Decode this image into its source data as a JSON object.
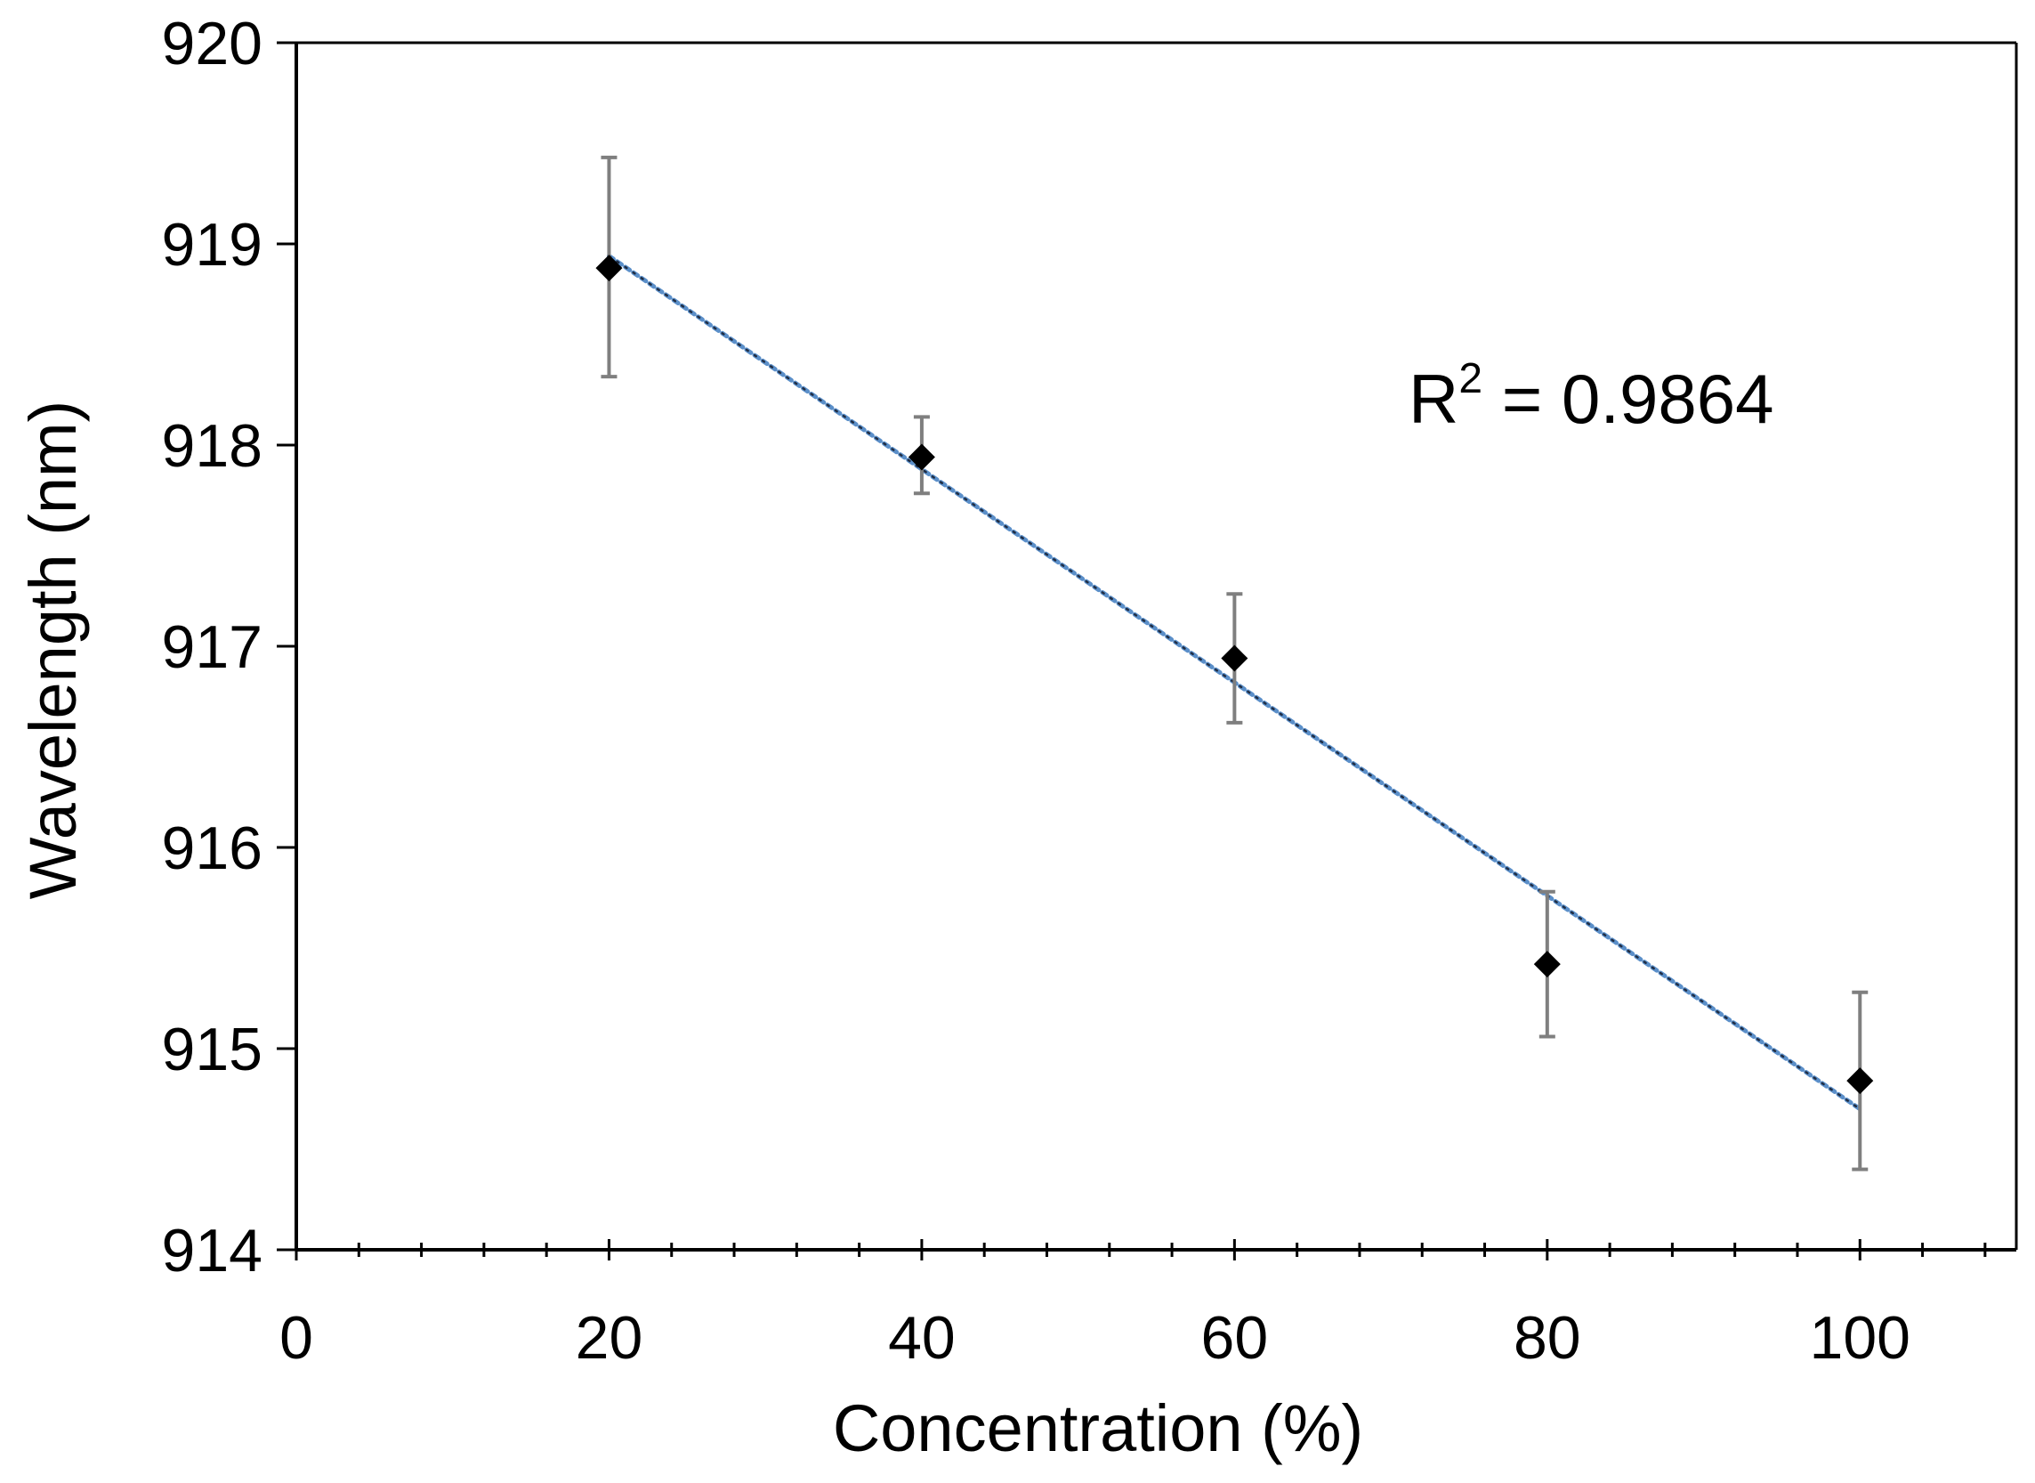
{
  "chart_data": {
    "type": "scatter",
    "title": "",
    "xlabel": "Concentration (%)",
    "ylabel": "Wavelength (nm)",
    "xlim": [
      0,
      110
    ],
    "ylim": [
      914,
      920
    ],
    "x_ticks": [
      0,
      20,
      40,
      60,
      80,
      100
    ],
    "y_ticks": [
      914,
      915,
      916,
      917,
      918,
      919,
      920
    ],
    "x_minor_step": 4,
    "x_tick_labels": [
      "0",
      "20",
      "40",
      "60",
      "80",
      "100"
    ],
    "y_tick_labels": [
      "914",
      "915",
      "916",
      "917",
      "918",
      "919",
      "920"
    ],
    "grid": false,
    "series": [
      {
        "name": "Wavelength",
        "marker": "diamond",
        "x": [
          20,
          40,
          60,
          80,
          100
        ],
        "y": [
          918.88,
          917.94,
          916.94,
          915.42,
          914.84
        ],
        "error_low": [
          918.34,
          917.76,
          916.62,
          915.06,
          914.4
        ],
        "error_high": [
          919.43,
          918.14,
          917.26,
          915.78,
          915.28
        ]
      }
    ],
    "trendline": {
      "type": "linear",
      "style": "dotted",
      "x": [
        20,
        100
      ],
      "y": [
        918.94,
        914.7
      ]
    },
    "annotations": {
      "r_squared_prefix": "R",
      "r_squared_sup": "2",
      "r_squared_value": " = 0.9864"
    },
    "colors": {
      "marker": "#000000",
      "trendline": "#5b8fc9",
      "errorbar": "#7f7f7f",
      "axis": "#000000"
    }
  }
}
